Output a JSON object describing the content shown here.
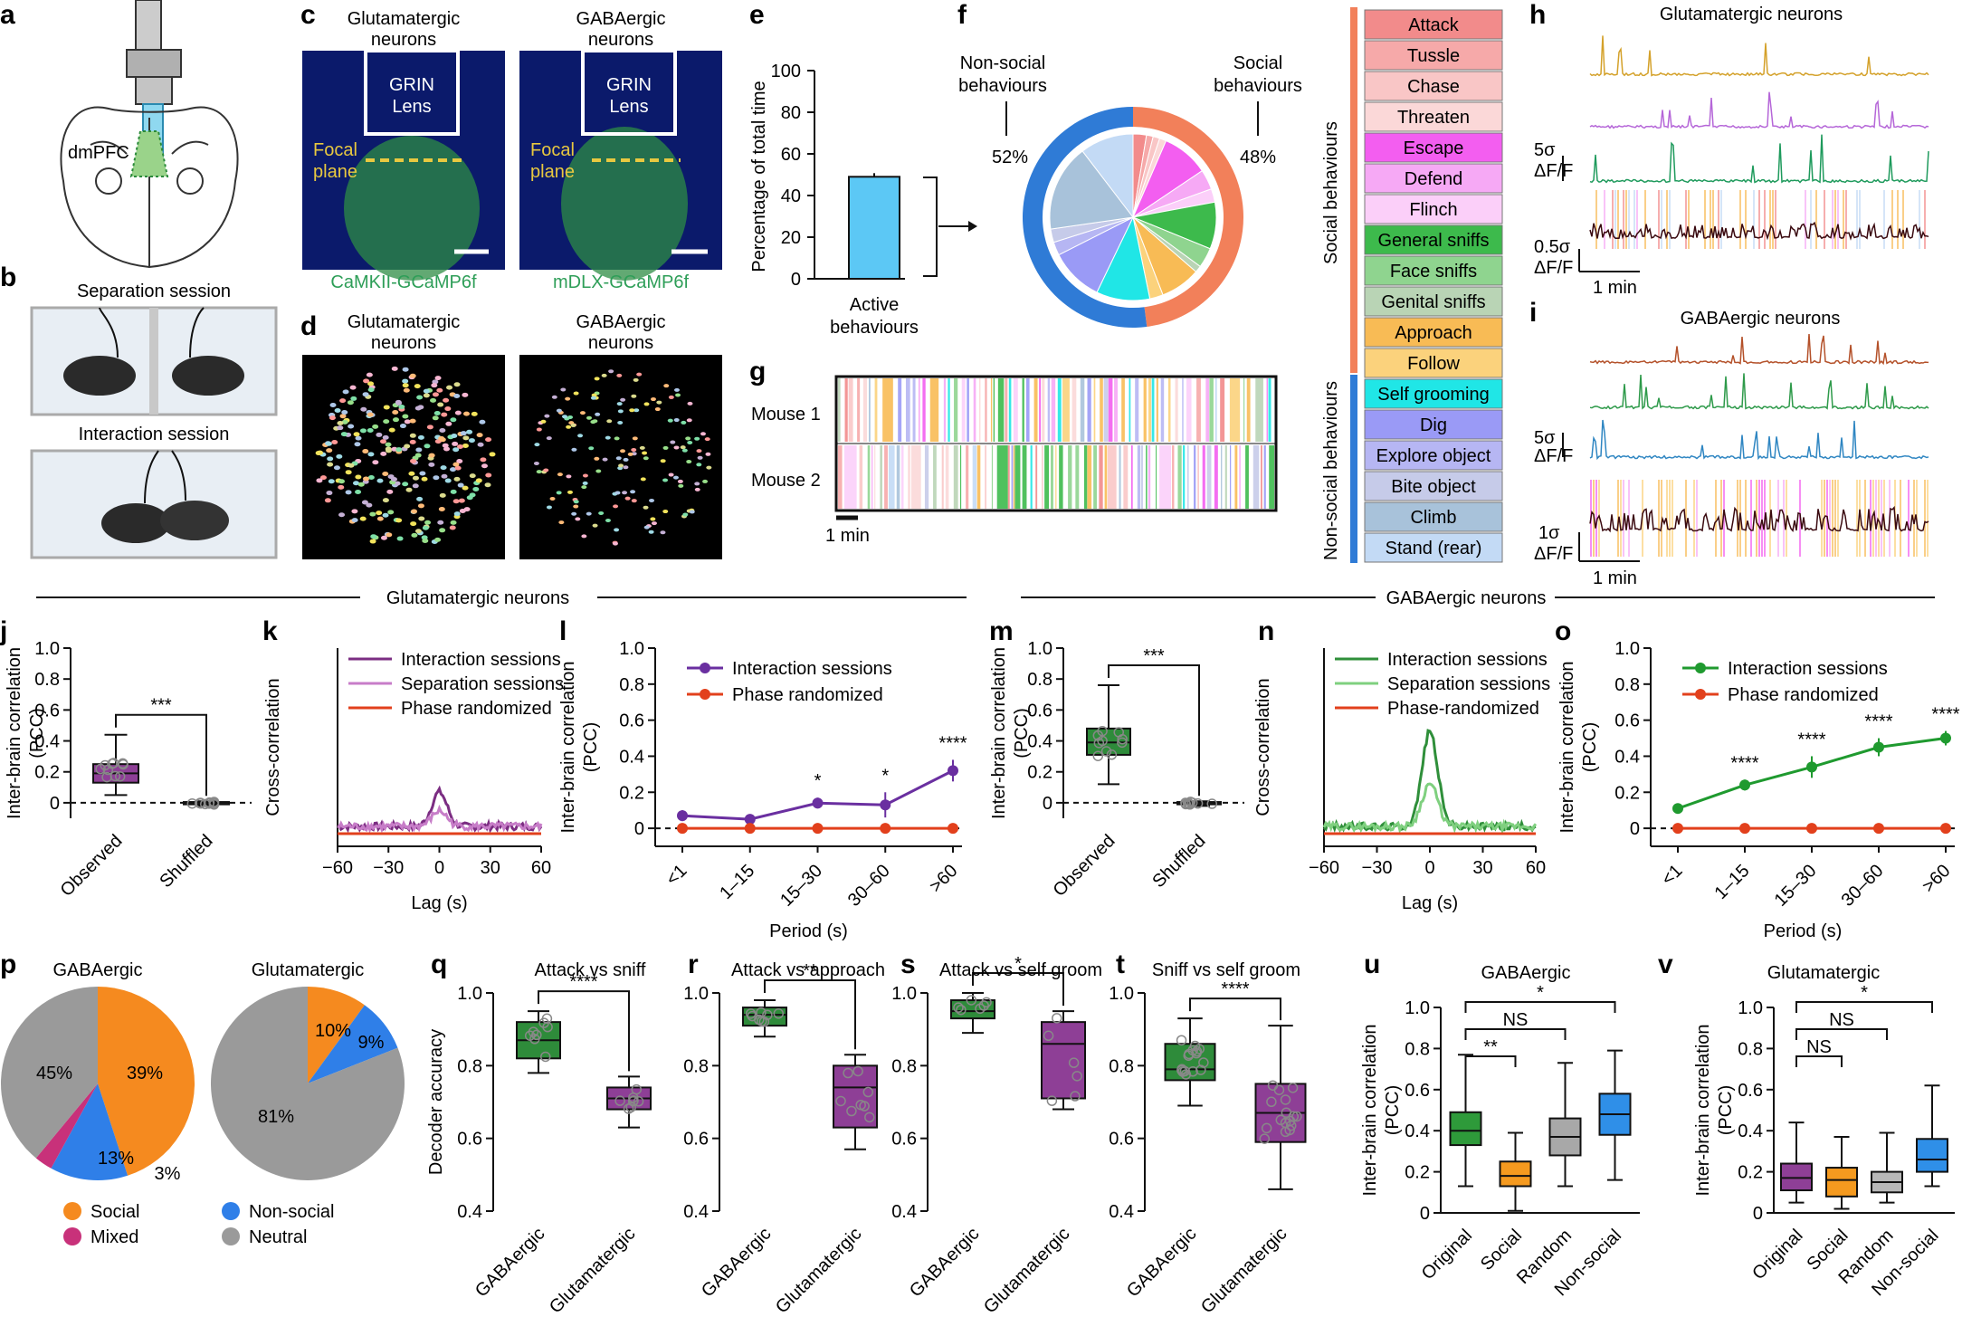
{
  "panel_letters": [
    "a",
    "b",
    "c",
    "d",
    "e",
    "f",
    "g",
    "h",
    "i",
    "j",
    "k",
    "l",
    "m",
    "n",
    "o",
    "p",
    "q",
    "r",
    "s",
    "t",
    "u",
    "v"
  ],
  "panel_a": {
    "region_label": "dmPFC"
  },
  "panel_b": {
    "separation_label": "Separation session",
    "interaction_label": "Interaction session"
  },
  "panel_c": {
    "left_title": [
      "Glutamatergic",
      "neurons"
    ],
    "right_title": [
      "GABAergic",
      "neurons"
    ],
    "lens_label": [
      "GRIN",
      "Lens"
    ],
    "focal_label": [
      "Focal",
      "plane"
    ],
    "left_caption": "CaMKII-GCaMP6f",
    "right_caption": "mDLX-GCaMP6f",
    "caption_color": "#2e9e58",
    "focal_color": "#e8c840"
  },
  "panel_d": {
    "left_title": [
      "Glutamatergic",
      "neurons"
    ],
    "right_title": [
      "GABAergic",
      "neurons"
    ]
  },
  "panel_e": {
    "ylabel": "Percentage of total time",
    "yticks": [
      "100",
      "80",
      "60",
      "40",
      "20",
      "0"
    ],
    "category": [
      "Active",
      "behaviours"
    ],
    "value": 49
  },
  "panel_f": {
    "left_label": [
      "Non-social",
      "behaviours"
    ],
    "right_label": [
      "Social",
      "behaviours"
    ],
    "left_pct": "52%",
    "right_pct": "48%",
    "social_color": "#f2805a",
    "nonsocial_color": "#2f7bd6"
  },
  "behaviour_legend": {
    "social_group_label": "Social behaviours",
    "nonsocial_group_label": "Non-social behaviours",
    "items": [
      {
        "label": "Attack",
        "color": "#f28b8b"
      },
      {
        "label": "Tussle",
        "color": "#f6a9a9"
      },
      {
        "label": "Chase",
        "color": "#f9c6c6"
      },
      {
        "label": "Threaten",
        "color": "#fbd8d8"
      },
      {
        "label": "Escape",
        "color": "#f35ef0"
      },
      {
        "label": "Defend",
        "color": "#f6a9f5"
      },
      {
        "label": "Flinch",
        "color": "#fbcff9"
      },
      {
        "label": "General sniffs",
        "color": "#3dba4c"
      },
      {
        "label": "Face sniffs",
        "color": "#8fd48f"
      },
      {
        "label": "Genital sniffs",
        "color": "#b9d4b5"
      },
      {
        "label": "Approach",
        "color": "#f8bb55"
      },
      {
        "label": "Follow",
        "color": "#fbd27c"
      },
      {
        "label": "Self grooming",
        "color": "#20e6e6"
      },
      {
        "label": "Dig",
        "color": "#9a9af6"
      },
      {
        "label": "Explore object",
        "color": "#b6b6f3"
      },
      {
        "label": "Bite object",
        "color": "#c6cbe9"
      },
      {
        "label": "Climb",
        "color": "#a8c2da"
      },
      {
        "label": "Stand (rear)",
        "color": "#c3daf5"
      }
    ]
  },
  "panel_g": {
    "row1": "Mouse 1",
    "row2": "Mouse 2",
    "scale": "1 min"
  },
  "panel_h": {
    "title": "Glutamatergic neurons",
    "scale1": [
      "5σ",
      "ΔF/F"
    ],
    "scale2": [
      "0.5σ",
      "ΔF/F"
    ],
    "time": "1 min"
  },
  "panel_i": {
    "title": "GABAergic neurons",
    "scale1": [
      "5σ",
      "ΔF/F"
    ],
    "scale2": [
      "1σ",
      "ΔF/F"
    ],
    "time": "1 min"
  },
  "section_glut": "Glutamatergic neurons",
  "section_gaba": "GABAergic neurons",
  "chart_data": [
    {
      "panel": "j",
      "type": "box",
      "ylabel": [
        "Inter-brain correlation",
        "(PCC)"
      ],
      "categories": [
        "Observed",
        "Shuffled"
      ],
      "ylim": [
        -0.1,
        1.0
      ],
      "yticks": [
        "1.0",
        "0.8",
        "0.6",
        "0.4",
        "0.2",
        "0"
      ],
      "boxes": [
        {
          "min": 0.05,
          "q1": 0.13,
          "median": 0.19,
          "q3": 0.25,
          "max": 0.44,
          "color": "#8e3f96"
        },
        {
          "min": -0.02,
          "q1": -0.01,
          "median": 0.0,
          "q3": 0.005,
          "max": 0.01,
          "color": "#dddddd"
        }
      ],
      "significance": "***"
    },
    {
      "panel": "k",
      "type": "line",
      "ylabel": "Cross-correlation",
      "xlabel": "Lag (s)",
      "xticks": [
        "−60",
        "−30",
        "0",
        "30",
        "60"
      ],
      "legend": [
        "Interaction sessions",
        "Separation sessions",
        "Phase randomized"
      ],
      "colors": [
        "#7b2d82",
        "#c77dc8",
        "#e2401c"
      ]
    },
    {
      "panel": "l",
      "type": "line",
      "ylabel": [
        "Inter-brain correlation",
        "(PCC)"
      ],
      "xlabel": "Period (s)",
      "categories": [
        "<1",
        "1–15",
        "15–30",
        "30–60",
        ">60"
      ],
      "yticks": [
        "1.0",
        "0.8",
        "0.6",
        "0.4",
        "0.2",
        "0"
      ],
      "ylim": [
        -0.1,
        1.0
      ],
      "series": [
        {
          "name": "Interaction sessions",
          "values": [
            0.07,
            0.05,
            0.14,
            0.13,
            0.32
          ],
          "err": [
            0.03,
            0.01,
            0.03,
            0.07,
            0.06
          ],
          "color": "#6a2fa0"
        },
        {
          "name": "Phase randomized",
          "values": [
            0.0,
            0.0,
            0.0,
            0.0,
            0.0
          ],
          "color": "#e2401c"
        }
      ],
      "stars": [
        "",
        "",
        "*",
        "*",
        "****"
      ]
    },
    {
      "panel": "m",
      "type": "box",
      "ylabel": [
        "Inter-brain correlation",
        "(PCC)"
      ],
      "categories": [
        "Observed",
        "Shuffled"
      ],
      "ylim": [
        -0.1,
        1.0
      ],
      "yticks": [
        "1.0",
        "0.8",
        "0.6",
        "0.4",
        "0.2",
        "0"
      ],
      "boxes": [
        {
          "min": 0.12,
          "q1": 0.31,
          "median": 0.39,
          "q3": 0.48,
          "max": 0.76,
          "color": "#2e8b3a"
        },
        {
          "min": -0.02,
          "q1": -0.01,
          "median": 0.0,
          "q3": 0.005,
          "max": 0.01,
          "color": "#dddddd"
        }
      ],
      "significance": "***"
    },
    {
      "panel": "n",
      "type": "line",
      "ylabel": "Cross-correlation",
      "xlabel": "Lag (s)",
      "xticks": [
        "−60",
        "−30",
        "0",
        "30",
        "60"
      ],
      "legend": [
        "Interaction sessions",
        "Separation sessions",
        "Phase-randomized"
      ],
      "colors": [
        "#2f8f3a",
        "#7fd07f",
        "#e2401c"
      ]
    },
    {
      "panel": "o",
      "type": "line",
      "ylabel": [
        "Inter-brain correlation",
        "(PCC)"
      ],
      "xlabel": "Period (s)",
      "categories": [
        "<1",
        "1–15",
        "15–30",
        "30–60",
        ">60"
      ],
      "yticks": [
        "1.0",
        "0.8",
        "0.6",
        "0.4",
        "0.2",
        "0"
      ],
      "ylim": [
        -0.1,
        1.0
      ],
      "series": [
        {
          "name": "Interaction sessions",
          "values": [
            0.11,
            0.24,
            0.34,
            0.45,
            0.5
          ],
          "err": [
            0.01,
            0.03,
            0.06,
            0.05,
            0.04
          ],
          "color": "#1f9a2f"
        },
        {
          "name": "Phase randomized",
          "values": [
            0.0,
            0.0,
            0.0,
            0.0,
            0.0
          ],
          "color": "#e2401c"
        }
      ],
      "stars": [
        "",
        "****",
        "****",
        "****",
        "****"
      ]
    },
    {
      "panel": "p",
      "type": "pie",
      "titles": [
        "GABAergic",
        "Glutamatergic"
      ],
      "pies": [
        {
          "slices": [
            {
              "label": "Social",
              "value": 45,
              "color": "#f58a1f"
            },
            {
              "label": "Non-social",
              "value": 13,
              "color": "#2f7fe8"
            },
            {
              "label": "Mixed",
              "value": 3,
              "color": "#c8317a"
            },
            {
              "label": "Neutral",
              "value": 39,
              "color": "#9a9a9a"
            }
          ],
          "texts": [
            "45%",
            "13%",
            "3%",
            "39%"
          ]
        },
        {
          "slices": [
            {
              "label": "Social",
              "value": 10,
              "color": "#f58a1f"
            },
            {
              "label": "Non-social",
              "value": 9,
              "color": "#2f7fe8"
            },
            {
              "label": "Neutral",
              "value": 81,
              "color": "#9a9a9a"
            }
          ],
          "texts": [
            "10%",
            "9%",
            "81%"
          ]
        }
      ],
      "legend": [
        {
          "label": "Social",
          "color": "#f58a1f"
        },
        {
          "label": "Non-social",
          "color": "#2f7fe8"
        },
        {
          "label": "Mixed",
          "color": "#c8317a"
        },
        {
          "label": "Neutral",
          "color": "#9a9a9a"
        }
      ]
    },
    {
      "panel": "q",
      "type": "box",
      "title": "Attack vs sniff",
      "ylabel": "Decoder accuracy",
      "categories": [
        "GABAergic",
        "Glutamatergic"
      ],
      "yticks": [
        "1.0",
        "0.8",
        "0.6",
        "0.4"
      ],
      "ylim": [
        0.4,
        1.0
      ],
      "boxes": [
        {
          "min": 0.78,
          "q1": 0.82,
          "median": 0.87,
          "q3": 0.92,
          "max": 0.95,
          "color": "#2e8b3a"
        },
        {
          "min": 0.63,
          "q1": 0.68,
          "median": 0.71,
          "q3": 0.74,
          "max": 0.77,
          "color": "#8e3f96"
        }
      ],
      "significance": "****"
    },
    {
      "panel": "r",
      "type": "box",
      "title": "Attack vs approach",
      "categories": [
        "GABAergic",
        "Glutamatergic"
      ],
      "yticks": [
        "1.0",
        "0.8",
        "0.6",
        "0.4"
      ],
      "ylim": [
        0.4,
        1.0
      ],
      "boxes": [
        {
          "min": 0.88,
          "q1": 0.91,
          "median": 0.94,
          "q3": 0.96,
          "max": 0.98,
          "color": "#2e8b3a"
        },
        {
          "min": 0.57,
          "q1": 0.63,
          "median": 0.74,
          "q3": 0.8,
          "max": 0.83,
          "color": "#8e3f96"
        }
      ],
      "significance": "**"
    },
    {
      "panel": "s",
      "type": "box",
      "title": "Attack vs self groom",
      "categories": [
        "GABAergic",
        "Glutamatergic"
      ],
      "yticks": [
        "1.0",
        "0.8",
        "0.6",
        "0.4"
      ],
      "ylim": [
        0.4,
        1.0
      ],
      "boxes": [
        {
          "min": 0.89,
          "q1": 0.93,
          "median": 0.95,
          "q3": 0.98,
          "max": 1.0,
          "color": "#2e8b3a"
        },
        {
          "min": 0.68,
          "q1": 0.71,
          "median": 0.86,
          "q3": 0.92,
          "max": 0.95,
          "color": "#8e3f96"
        }
      ],
      "significance": "*"
    },
    {
      "panel": "t",
      "type": "box",
      "title": "Sniff vs self groom",
      "categories": [
        "GABAergic",
        "Glutamatergic"
      ],
      "yticks": [
        "1.0",
        "0.8",
        "0.6",
        "0.4"
      ],
      "ylim": [
        0.4,
        1.0
      ],
      "boxes": [
        {
          "min": 0.69,
          "q1": 0.76,
          "median": 0.79,
          "q3": 0.86,
          "max": 0.93,
          "color": "#2e8b3a"
        },
        {
          "min": 0.46,
          "q1": 0.59,
          "median": 0.67,
          "q3": 0.75,
          "max": 0.91,
          "color": "#8e3f96"
        }
      ],
      "significance": "****"
    },
    {
      "panel": "u",
      "type": "box",
      "title": "GABAergic",
      "ylabel": [
        "Inter-brain correlation",
        "(PCC)"
      ],
      "categories": [
        "Original",
        "Social",
        "Random",
        "Non-social"
      ],
      "yticks": [
        "1.0",
        "0.8",
        "0.6",
        "0.4",
        "0.2",
        "0"
      ],
      "ylim": [
        0,
        1.0
      ],
      "boxes": [
        {
          "min": 0.13,
          "q1": 0.33,
          "median": 0.4,
          "q3": 0.49,
          "max": 0.77,
          "color": "#2e9a3a"
        },
        {
          "min": 0.01,
          "q1": 0.13,
          "median": 0.18,
          "q3": 0.25,
          "max": 0.39,
          "color": "#f59a1f"
        },
        {
          "min": 0.13,
          "q1": 0.28,
          "median": 0.37,
          "q3": 0.46,
          "max": 0.73,
          "color": "#a8a8a8"
        },
        {
          "min": 0.16,
          "q1": 0.38,
          "median": 0.48,
          "q3": 0.58,
          "max": 0.79,
          "color": "#2f8fe8"
        }
      ],
      "brackets": [
        {
          "from": 0,
          "to": 3,
          "label": "*"
        },
        {
          "from": 0,
          "to": 2,
          "label": "NS"
        },
        {
          "from": 0,
          "to": 1,
          "label": "**"
        }
      ]
    },
    {
      "panel": "v",
      "type": "box",
      "title": "Glutamatergic",
      "ylabel": [
        "Inter-brain correlation",
        "(PCC)"
      ],
      "categories": [
        "Original",
        "Social",
        "Random",
        "Non-social"
      ],
      "yticks": [
        "1.0",
        "0.8",
        "0.6",
        "0.4",
        "0.2",
        "0"
      ],
      "ylim": [
        0,
        1.0
      ],
      "boxes": [
        {
          "min": 0.05,
          "q1": 0.11,
          "median": 0.17,
          "q3": 0.24,
          "max": 0.44,
          "color": "#8e3f96"
        },
        {
          "min": 0.02,
          "q1": 0.08,
          "median": 0.16,
          "q3": 0.22,
          "max": 0.37,
          "color": "#f59a1f"
        },
        {
          "min": 0.05,
          "q1": 0.1,
          "median": 0.15,
          "q3": 0.2,
          "max": 0.39,
          "color": "#b8b8b8"
        },
        {
          "min": 0.13,
          "q1": 0.2,
          "median": 0.26,
          "q3": 0.36,
          "max": 0.62,
          "color": "#2f8fe8"
        }
      ],
      "brackets": [
        {
          "from": 0,
          "to": 3,
          "label": "*"
        },
        {
          "from": 0,
          "to": 2,
          "label": "NS"
        },
        {
          "from": 0,
          "to": 1,
          "label": "NS"
        }
      ]
    }
  ]
}
